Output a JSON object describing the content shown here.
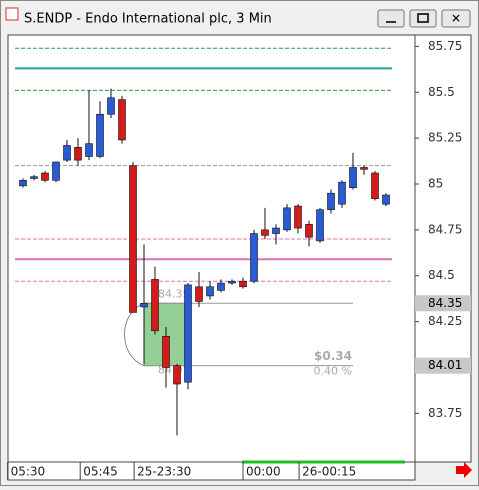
{
  "window_title": "S.ENDP - Endo International plc, 3 Min",
  "chart_data": {
    "type": "candlestick",
    "up_color": "#2a5bd7",
    "down_color": "#d41a1a",
    "open": [
      84.99,
      85.03,
      85.06,
      85.02,
      85.13,
      85.2,
      85.15,
      85.15,
      85.38,
      85.46,
      85.1,
      84.33,
      84.48,
      84.17,
      84.01,
      83.92,
      84.44,
      84.39,
      84.42,
      84.46,
      84.47,
      84.47,
      84.75,
      84.73,
      84.75,
      84.88,
      84.78,
      84.69,
      84.86,
      84.89,
      84.98,
      85.09,
      85.06,
      84.89
    ],
    "high": [
      85.03,
      85.05,
      85.07,
      85.12,
      85.24,
      85.25,
      85.51,
      85.45,
      85.52,
      85.48,
      85.12,
      84.67,
      84.55,
      84.22,
      84.02,
      84.46,
      84.52,
      84.47,
      84.48,
      84.48,
      84.49,
      84.75,
      84.87,
      84.78,
      84.89,
      84.89,
      84.8,
      84.87,
      84.97,
      85.02,
      85.17,
      85.1,
      85.07,
      84.95
    ],
    "low": [
      84.98,
      85.02,
      85.01,
      85.01,
      85.12,
      85.1,
      85.13,
      85.14,
      85.36,
      85.22,
      84.3,
      84.02,
      84.18,
      83.89,
      83.63,
      83.88,
      84.33,
      84.37,
      84.41,
      84.45,
      84.43,
      84.46,
      84.7,
      84.67,
      84.74,
      84.73,
      84.66,
      84.68,
      84.84,
      84.87,
      84.97,
      85.05,
      84.91,
      84.88
    ],
    "close": [
      85.02,
      85.04,
      85.02,
      85.12,
      85.21,
      85.13,
      85.22,
      85.38,
      85.47,
      85.24,
      84.3,
      84.35,
      84.2,
      84.0,
      83.91,
      84.45,
      84.36,
      84.44,
      84.46,
      84.47,
      84.44,
      84.73,
      84.72,
      84.76,
      84.87,
      84.76,
      84.71,
      84.86,
      84.95,
      85.01,
      85.09,
      85.08,
      84.92,
      84.94
    ],
    "ylim": [
      83.485,
      85.812
    ],
    "yticks": [
      83.75,
      84.0,
      84.25,
      84.5,
      84.75,
      85.0,
      85.25,
      85.5,
      85.75
    ],
    "xticks": [
      {
        "value": -1.4,
        "label": "05:30"
      },
      {
        "value": 5.2,
        "label": "05:45"
      },
      {
        "value": 10.1,
        "label": "25-23:30"
      },
      {
        "value": 20,
        "label": "00:00"
      },
      {
        "value": 25.1,
        "label": "26-00:15"
      }
    ],
    "levels": [
      {
        "value": 85.74,
        "color": "#22a03a",
        "style": "dashed"
      },
      {
        "value": 85.63,
        "color": "#1aa6a0",
        "style": "solid"
      },
      {
        "value": 85.51,
        "color": "#22a03a",
        "style": "dashed"
      },
      {
        "value": 85.1,
        "color": "#a09aa0",
        "style": "dashed"
      },
      {
        "value": 84.7,
        "color": "#e070b0",
        "style": "dashed"
      },
      {
        "value": 84.59,
        "color": "#e070b0",
        "style": "solid"
      },
      {
        "value": 84.47,
        "color": "#e070b0",
        "style": "dashed"
      }
    ],
    "price_markers": [
      {
        "value": 84.35,
        "label": "84.35"
      },
      {
        "value": 84.01,
        "label": "84.01"
      }
    ],
    "measure": {
      "change_label": "$0.34",
      "pct_label": "0.40 %"
    }
  }
}
